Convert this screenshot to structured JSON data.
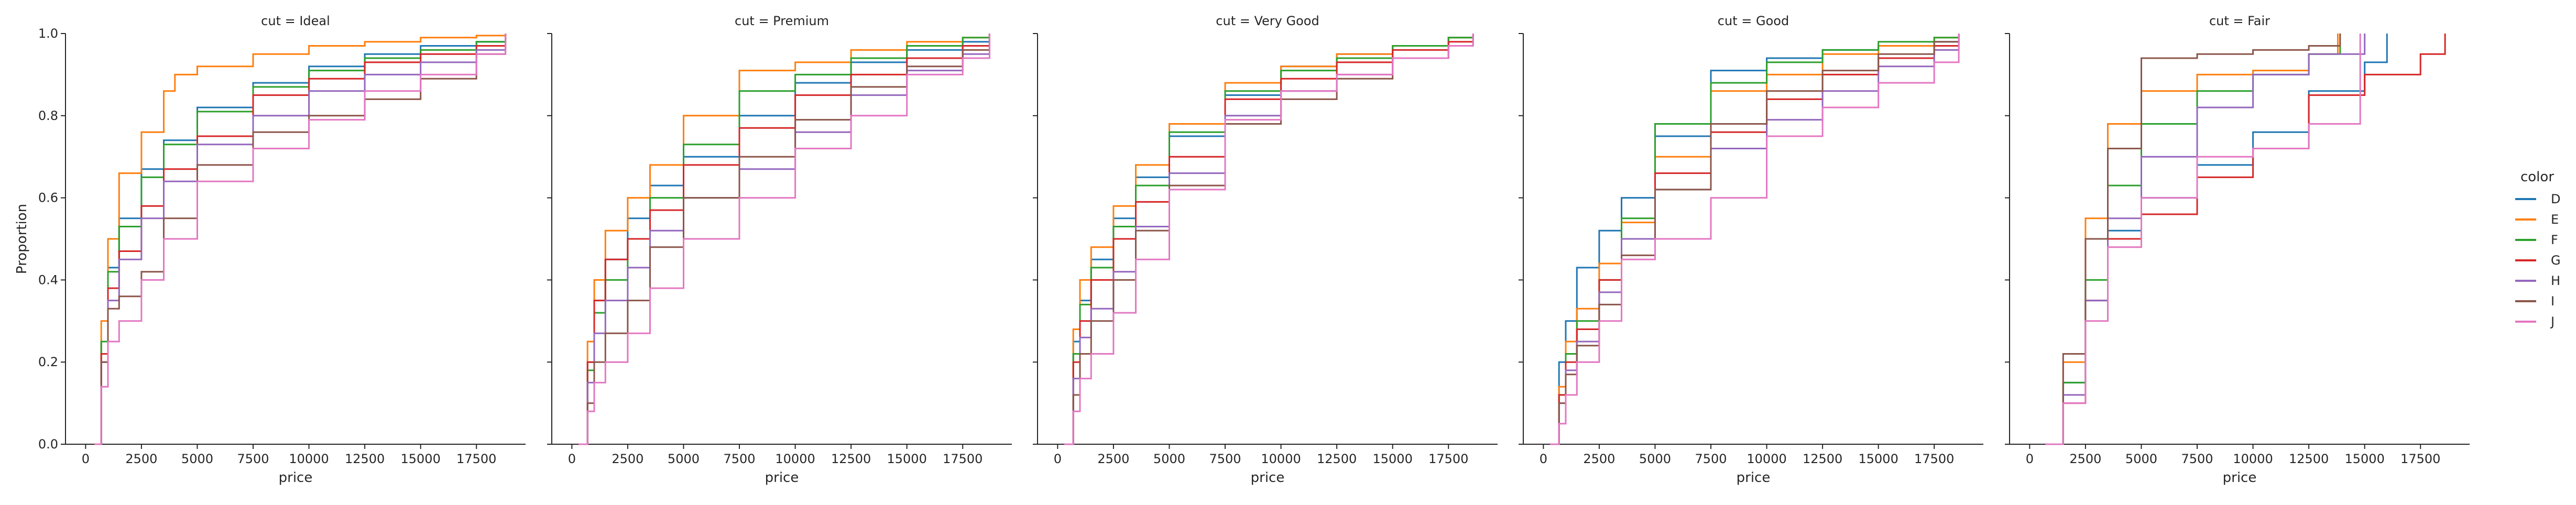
{
  "chart_data": {
    "type": "line",
    "subtype": "ecdf-step",
    "facets": [
      "cut = Ideal",
      "cut = Premium",
      "cut = Very Good",
      "cut = Good",
      "cut = Fair"
    ],
    "xlabel": "price",
    "ylabel": "Proportion",
    "xlim": [
      -900,
      19700
    ],
    "ylim": [
      0,
      1
    ],
    "xticks": [
      0,
      2500,
      5000,
      7500,
      10000,
      12500,
      15000,
      17500
    ],
    "yticks": [
      0.0,
      0.2,
      0.4,
      0.6,
      0.8,
      1.0
    ],
    "legend": {
      "title": "color",
      "position": "right",
      "entries": [
        "D",
        "E",
        "F",
        "G",
        "H",
        "I",
        "J"
      ]
    },
    "colors": {
      "D": "#1f77b4",
      "E": "#ff7f0e",
      "F": "#2ca02c",
      "G": "#d62728",
      "H": "#9467bd",
      "I": "#8c564b",
      "J": "#e377c2"
    },
    "series": [
      {
        "facet": "cut = Ideal",
        "name": "D",
        "x": [
          400,
          700,
          1000,
          1500,
          2500,
          3500,
          5000,
          7500,
          10000,
          12500,
          15000,
          17500,
          18800
        ],
        "y": [
          0,
          0.25,
          0.43,
          0.55,
          0.67,
          0.74,
          0.82,
          0.88,
          0.92,
          0.95,
          0.97,
          0.98,
          1.0
        ]
      },
      {
        "facet": "cut = Ideal",
        "name": "E",
        "x": [
          400,
          700,
          1000,
          1500,
          2500,
          3500,
          4000,
          5000,
          7500,
          10000,
          12500,
          15000,
          17500,
          18800
        ],
        "y": [
          0,
          0.3,
          0.5,
          0.66,
          0.76,
          0.86,
          0.9,
          0.92,
          0.95,
          0.97,
          0.98,
          0.99,
          0.995,
          1.0
        ]
      },
      {
        "facet": "cut = Ideal",
        "name": "F",
        "x": [
          400,
          700,
          1000,
          1500,
          2500,
          3500,
          5000,
          7500,
          10000,
          12500,
          15000,
          17500,
          18800
        ],
        "y": [
          0,
          0.25,
          0.42,
          0.53,
          0.65,
          0.73,
          0.81,
          0.87,
          0.91,
          0.94,
          0.96,
          0.98,
          1.0
        ]
      },
      {
        "facet": "cut = Ideal",
        "name": "G",
        "x": [
          400,
          700,
          1000,
          1500,
          2500,
          3500,
          5000,
          7500,
          10000,
          12500,
          15000,
          17500,
          18800
        ],
        "y": [
          0,
          0.22,
          0.38,
          0.47,
          0.58,
          0.67,
          0.75,
          0.85,
          0.89,
          0.93,
          0.95,
          0.97,
          1.0
        ]
      },
      {
        "facet": "cut = Ideal",
        "name": "H",
        "x": [
          400,
          700,
          1000,
          1500,
          2500,
          3500,
          5000,
          7500,
          10000,
          12500,
          15000,
          17500,
          18800
        ],
        "y": [
          0,
          0.2,
          0.35,
          0.45,
          0.55,
          0.64,
          0.73,
          0.8,
          0.86,
          0.9,
          0.93,
          0.96,
          1.0
        ]
      },
      {
        "facet": "cut = Ideal",
        "name": "I",
        "x": [
          400,
          700,
          1000,
          1500,
          2500,
          3500,
          5000,
          7500,
          10000,
          12500,
          15000,
          17500,
          18800
        ],
        "y": [
          0,
          0.2,
          0.33,
          0.36,
          0.42,
          0.55,
          0.68,
          0.76,
          0.8,
          0.84,
          0.89,
          0.95,
          1.0
        ]
      },
      {
        "facet": "cut = Ideal",
        "name": "J",
        "x": [
          400,
          700,
          1000,
          1500,
          2500,
          3500,
          5000,
          7500,
          10000,
          12500,
          15000,
          17500,
          18800
        ],
        "y": [
          0,
          0.14,
          0.25,
          0.3,
          0.4,
          0.5,
          0.64,
          0.72,
          0.79,
          0.86,
          0.9,
          0.95,
          1.0
        ]
      },
      {
        "facet": "cut = Premium",
        "name": "D",
        "x": [
          300,
          700,
          1000,
          1500,
          2500,
          3500,
          5000,
          7500,
          10000,
          12500,
          15000,
          17500,
          18700
        ],
        "y": [
          0,
          0.2,
          0.35,
          0.45,
          0.55,
          0.63,
          0.7,
          0.8,
          0.88,
          0.93,
          0.96,
          0.98,
          1.0
        ]
      },
      {
        "facet": "cut = Premium",
        "name": "E",
        "x": [
          300,
          700,
          1000,
          1500,
          2500,
          3500,
          5000,
          7500,
          10000,
          12500,
          15000,
          17500,
          18700
        ],
        "y": [
          0,
          0.25,
          0.4,
          0.52,
          0.6,
          0.68,
          0.8,
          0.91,
          0.93,
          0.96,
          0.98,
          0.99,
          1.0
        ]
      },
      {
        "facet": "cut = Premium",
        "name": "F",
        "x": [
          300,
          700,
          1000,
          1500,
          2500,
          3500,
          5000,
          7500,
          10000,
          12500,
          15000,
          17500,
          18700
        ],
        "y": [
          0,
          0.18,
          0.32,
          0.4,
          0.5,
          0.6,
          0.73,
          0.86,
          0.9,
          0.94,
          0.97,
          0.99,
          1.0
        ]
      },
      {
        "facet": "cut = Premium",
        "name": "G",
        "x": [
          300,
          700,
          1000,
          1500,
          2500,
          3500,
          5000,
          7500,
          10000,
          12500,
          15000,
          17500,
          18700
        ],
        "y": [
          0,
          0.2,
          0.35,
          0.45,
          0.5,
          0.57,
          0.68,
          0.77,
          0.85,
          0.9,
          0.94,
          0.97,
          1.0
        ]
      },
      {
        "facet": "cut = Premium",
        "name": "H",
        "x": [
          300,
          700,
          1000,
          1500,
          2500,
          3500,
          5000,
          7500,
          10000,
          12500,
          15000,
          17500,
          18700
        ],
        "y": [
          0,
          0.15,
          0.27,
          0.35,
          0.43,
          0.52,
          0.6,
          0.67,
          0.76,
          0.85,
          0.91,
          0.95,
          1.0
        ]
      },
      {
        "facet": "cut = Premium",
        "name": "I",
        "x": [
          300,
          700,
          1000,
          1500,
          2500,
          3500,
          5000,
          7500,
          10000,
          12500,
          15000,
          17500,
          18700
        ],
        "y": [
          0,
          0.1,
          0.2,
          0.27,
          0.35,
          0.48,
          0.6,
          0.7,
          0.79,
          0.87,
          0.92,
          0.96,
          1.0
        ]
      },
      {
        "facet": "cut = Premium",
        "name": "J",
        "x": [
          300,
          700,
          1000,
          1500,
          2500,
          3500,
          5000,
          7500,
          10000,
          12500,
          15000,
          17500,
          18700
        ],
        "y": [
          0,
          0.08,
          0.15,
          0.2,
          0.27,
          0.38,
          0.5,
          0.6,
          0.72,
          0.8,
          0.9,
          0.94,
          1.0
        ]
      },
      {
        "facet": "cut = Very Good",
        "name": "D",
        "x": [
          300,
          700,
          1000,
          1500,
          2500,
          3500,
          5000,
          7500,
          10000,
          12500,
          15000,
          17500,
          18600
        ],
        "y": [
          0,
          0.25,
          0.35,
          0.45,
          0.55,
          0.65,
          0.75,
          0.85,
          0.92,
          0.95,
          0.97,
          0.99,
          1.0
        ]
      },
      {
        "facet": "cut = Very Good",
        "name": "E",
        "x": [
          300,
          700,
          1000,
          1500,
          2500,
          3500,
          5000,
          7500,
          10000,
          12500,
          15000,
          17500,
          18600
        ],
        "y": [
          0,
          0.28,
          0.4,
          0.48,
          0.58,
          0.68,
          0.78,
          0.88,
          0.92,
          0.95,
          0.97,
          0.99,
          1.0
        ]
      },
      {
        "facet": "cut = Very Good",
        "name": "F",
        "x": [
          300,
          700,
          1000,
          1500,
          2500,
          3500,
          5000,
          7500,
          10000,
          12500,
          15000,
          17500,
          18600
        ],
        "y": [
          0,
          0.22,
          0.34,
          0.43,
          0.53,
          0.63,
          0.76,
          0.86,
          0.91,
          0.94,
          0.97,
          0.99,
          1.0
        ]
      },
      {
        "facet": "cut = Very Good",
        "name": "G",
        "x": [
          300,
          700,
          1000,
          1500,
          2500,
          3500,
          5000,
          7500,
          10000,
          12500,
          15000,
          17500,
          18600
        ],
        "y": [
          0,
          0.2,
          0.3,
          0.4,
          0.5,
          0.59,
          0.7,
          0.84,
          0.89,
          0.93,
          0.96,
          0.98,
          1.0
        ]
      },
      {
        "facet": "cut = Very Good",
        "name": "H",
        "x": [
          300,
          700,
          1000,
          1500,
          2500,
          3500,
          5000,
          7500,
          10000,
          12500,
          15000,
          17500,
          18600
        ],
        "y": [
          0,
          0.16,
          0.26,
          0.33,
          0.42,
          0.53,
          0.66,
          0.8,
          0.86,
          0.9,
          0.94,
          0.97,
          1.0
        ]
      },
      {
        "facet": "cut = Very Good",
        "name": "I",
        "x": [
          300,
          700,
          1000,
          1500,
          2500,
          3500,
          5000,
          7500,
          10000,
          12500,
          15000,
          17500,
          18600
        ],
        "y": [
          0,
          0.12,
          0.22,
          0.3,
          0.4,
          0.52,
          0.63,
          0.78,
          0.84,
          0.89,
          0.94,
          0.97,
          1.0
        ]
      },
      {
        "facet": "cut = Very Good",
        "name": "J",
        "x": [
          300,
          700,
          1000,
          1500,
          2500,
          3500,
          5000,
          7500,
          10000,
          12500,
          15000,
          17500,
          18600
        ],
        "y": [
          0,
          0.08,
          0.16,
          0.22,
          0.32,
          0.45,
          0.62,
          0.79,
          0.86,
          0.9,
          0.94,
          0.97,
          1.0
        ]
      },
      {
        "facet": "cut = Good",
        "name": "D",
        "x": [
          300,
          700,
          1000,
          1500,
          2500,
          3500,
          5000,
          7500,
          10000,
          12500,
          15000,
          17500,
          18600
        ],
        "y": [
          0,
          0.2,
          0.3,
          0.43,
          0.52,
          0.6,
          0.75,
          0.91,
          0.94,
          0.96,
          0.97,
          0.98,
          1.0
        ]
      },
      {
        "facet": "cut = Good",
        "name": "E",
        "x": [
          300,
          700,
          1000,
          1500,
          2500,
          3500,
          5000,
          7500,
          10000,
          12500,
          15000,
          17500,
          18600
        ],
        "y": [
          0,
          0.14,
          0.25,
          0.33,
          0.44,
          0.54,
          0.7,
          0.86,
          0.9,
          0.95,
          0.97,
          0.99,
          1.0
        ]
      },
      {
        "facet": "cut = Good",
        "name": "F",
        "x": [
          300,
          700,
          1000,
          1500,
          2500,
          3500,
          5000,
          7500,
          10000,
          12500,
          15000,
          17500,
          18600
        ],
        "y": [
          0,
          0.12,
          0.22,
          0.3,
          0.4,
          0.55,
          0.78,
          0.88,
          0.93,
          0.96,
          0.98,
          0.99,
          1.0
        ]
      },
      {
        "facet": "cut = Good",
        "name": "G",
        "x": [
          300,
          700,
          1000,
          1500,
          2500,
          3500,
          5000,
          7500,
          10000,
          12500,
          15000,
          17500,
          18600
        ],
        "y": [
          0,
          0.12,
          0.2,
          0.28,
          0.4,
          0.5,
          0.66,
          0.76,
          0.84,
          0.9,
          0.94,
          0.97,
          1.0
        ]
      },
      {
        "facet": "cut = Good",
        "name": "H",
        "x": [
          300,
          700,
          1000,
          1500,
          2500,
          3500,
          5000,
          7500,
          10000,
          12500,
          15000,
          17500,
          18600
        ],
        "y": [
          0,
          0.1,
          0.18,
          0.25,
          0.37,
          0.5,
          0.62,
          0.72,
          0.79,
          0.86,
          0.92,
          0.96,
          1.0
        ]
      },
      {
        "facet": "cut = Good",
        "name": "I",
        "x": [
          300,
          700,
          1000,
          1500,
          2500,
          3500,
          5000,
          7500,
          10000,
          12500,
          15000,
          17500,
          18600
        ],
        "y": [
          0,
          0.1,
          0.17,
          0.24,
          0.34,
          0.46,
          0.62,
          0.78,
          0.86,
          0.91,
          0.95,
          0.98,
          1.0
        ]
      },
      {
        "facet": "cut = Good",
        "name": "J",
        "x": [
          300,
          700,
          1000,
          1500,
          2500,
          3500,
          5000,
          7500,
          10000,
          12500,
          15000,
          17500,
          18600
        ],
        "y": [
          0,
          0.05,
          0.12,
          0.2,
          0.3,
          0.45,
          0.5,
          0.6,
          0.75,
          0.82,
          0.88,
          0.93,
          1.0
        ]
      },
      {
        "facet": "cut = Fair",
        "name": "D",
        "x": [
          700,
          1500,
          2500,
          3500,
          5000,
          7500,
          10000,
          12500,
          15000,
          16000
        ],
        "y": [
          0,
          0.15,
          0.35,
          0.52,
          0.6,
          0.68,
          0.76,
          0.86,
          0.93,
          1.0
        ]
      },
      {
        "facet": "cut = Fair",
        "name": "E",
        "x": [
          700,
          1500,
          2500,
          3500,
          5000,
          7500,
          10000,
          12500,
          13800
        ],
        "y": [
          0,
          0.2,
          0.55,
          0.78,
          0.86,
          0.9,
          0.91,
          0.95,
          1.0
        ]
      },
      {
        "facet": "cut = Fair",
        "name": "F",
        "x": [
          700,
          1500,
          2500,
          3500,
          5000,
          7500,
          10000,
          12500,
          13900
        ],
        "y": [
          0,
          0.15,
          0.4,
          0.63,
          0.78,
          0.86,
          0.9,
          0.95,
          1.0
        ]
      },
      {
        "facet": "cut = Fair",
        "name": "G",
        "x": [
          700,
          1500,
          2500,
          3500,
          5000,
          7500,
          10000,
          12500,
          15000,
          17500,
          18600
        ],
        "y": [
          0,
          0.1,
          0.35,
          0.5,
          0.56,
          0.65,
          0.72,
          0.85,
          0.9,
          0.95,
          1.0
        ]
      },
      {
        "facet": "cut = Fair",
        "name": "H",
        "x": [
          700,
          1500,
          2500,
          3500,
          5000,
          7500,
          10000,
          12500,
          15000
        ],
        "y": [
          0,
          0.12,
          0.35,
          0.55,
          0.7,
          0.82,
          0.9,
          0.95,
          1.0
        ]
      },
      {
        "facet": "cut = Fair",
        "name": "I",
        "x": [
          700,
          1500,
          2500,
          3500,
          5000,
          7500,
          10000,
          12500,
          13900
        ],
        "y": [
          0,
          0.22,
          0.5,
          0.72,
          0.94,
          0.95,
          0.96,
          0.97,
          1.0
        ]
      },
      {
        "facet": "cut = Fair",
        "name": "J",
        "x": [
          700,
          1500,
          2500,
          3500,
          5000,
          7500,
          10000,
          12500,
          14800
        ],
        "y": [
          0,
          0.1,
          0.3,
          0.48,
          0.6,
          0.7,
          0.72,
          0.78,
          1.0
        ]
      }
    ]
  }
}
